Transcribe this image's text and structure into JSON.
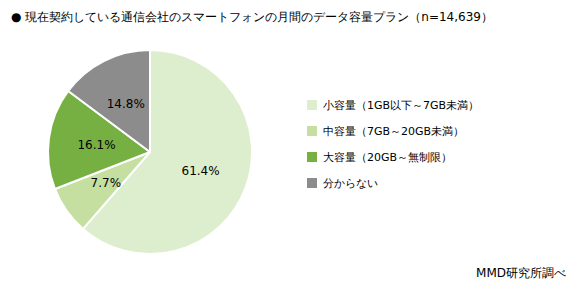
{
  "chart_data": {
    "type": "pie",
    "title": "● 現在契約している通信会社のスマートフォンの月間のデータ容量プラン（n=14,639）",
    "categories": [
      "小容量（1GB以下～7GB未満）",
      "中容量（7GB～20GB未満）",
      "大容量（20GB～無制限）",
      "分からない"
    ],
    "values": [
      61.4,
      7.7,
      16.1,
      14.8
    ],
    "value_labels": [
      "61.4%",
      "7.7%",
      "16.1%",
      "14.8%"
    ],
    "colors": [
      "#ddeece",
      "#c5dfa0",
      "#76b043",
      "#8c8c8c"
    ],
    "data_labels": true,
    "legend": "right",
    "annotation": "MMD研究所調べ"
  }
}
